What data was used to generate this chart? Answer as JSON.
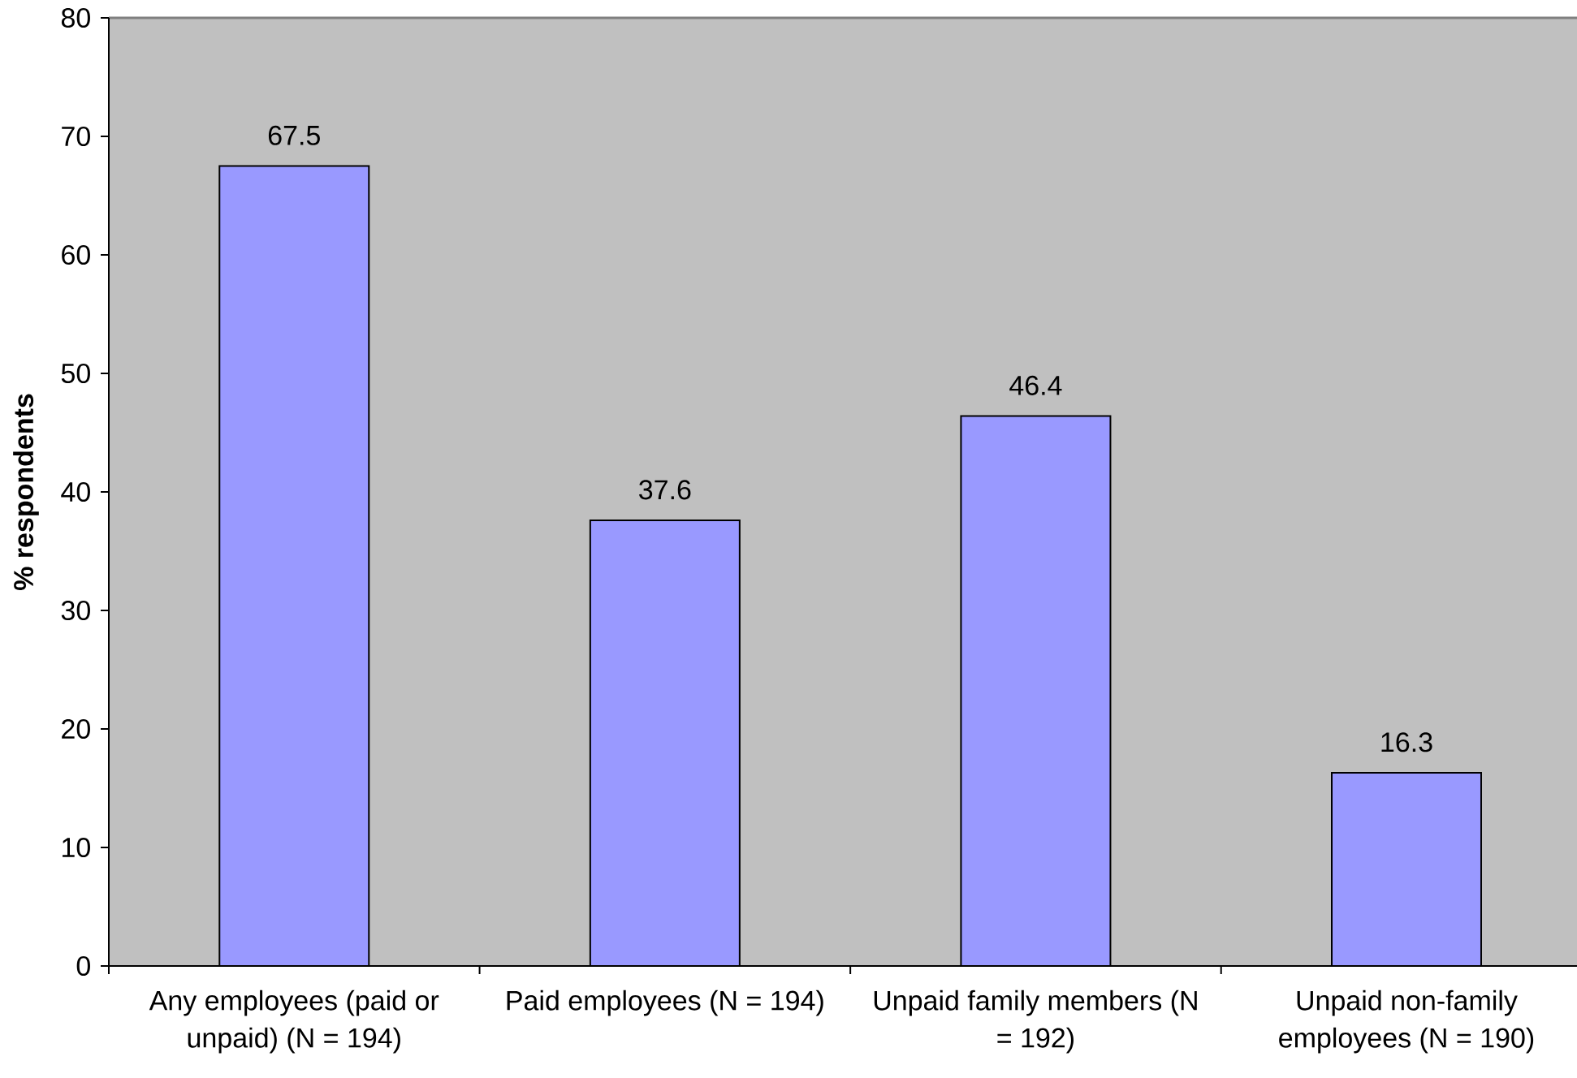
{
  "chart_data": {
    "type": "bar",
    "ylabel": "% respondents",
    "categories": [
      "Any employees (paid or unpaid) (N = 194)",
      "Paid employees (N = 194)",
      "Unpaid family members (N = 192)",
      "Unpaid non-family employees (N = 190)"
    ],
    "values": [
      67.5,
      37.6,
      46.4,
      16.3
    ],
    "color": "#9999ff",
    "ylim": [
      0,
      80
    ],
    "yticks": [
      0,
      10,
      20,
      30,
      40,
      50,
      60,
      70,
      80
    ],
    "data_labels": true
  }
}
